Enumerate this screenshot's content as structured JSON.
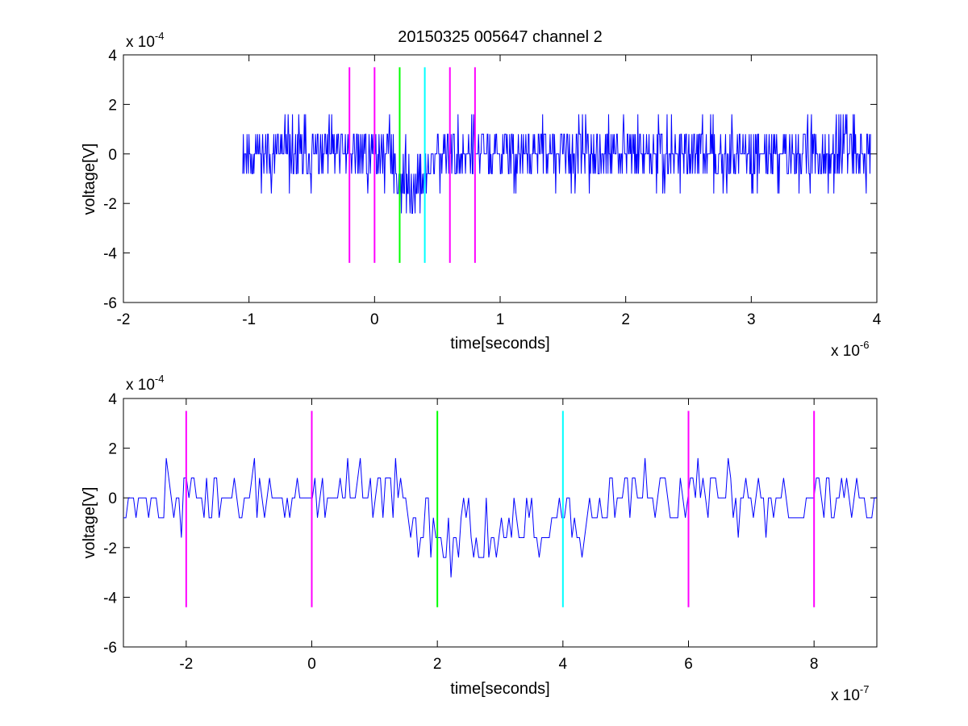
{
  "chart_data": [
    {
      "type": "line",
      "title": "20150325 005647 channel 2",
      "xlabel": "time[seconds]",
      "ylabel": "voltage[V]",
      "x_multiplier_base": "x 10",
      "x_multiplier_exp": "-6",
      "y_multiplier_base": "x 10",
      "y_multiplier_exp": "-4",
      "xlim": [
        -2,
        4
      ],
      "ylim": [
        -6,
        4
      ],
      "xticks": [
        -2,
        -1,
        0,
        1,
        2,
        3,
        4
      ],
      "xtick_labels": [
        "-2",
        "-1",
        "0",
        "1",
        "2",
        "3",
        "4"
      ],
      "yticks": [
        -6,
        -4,
        -2,
        0,
        2,
        4
      ],
      "ytick_labels": [
        "-6",
        "-4",
        "-2",
        "0",
        "2",
        "4"
      ],
      "series": [
        {
          "color": "#0000ff",
          "x_range": [
            -1.05,
            3.95
          ],
          "x_units_note": "",
          "levels": [
            -3.2,
            -2.4,
            -1.6,
            -0.8,
            0,
            0.8,
            1.6,
            2.4,
            3.2
          ],
          "trough": {
            "x_range": [
              0.15,
              0.45
            ],
            "center": -1.2
          }
        }
      ],
      "markers": [
        {
          "x": -0.2,
          "color": "#ff00ff"
        },
        {
          "x": 0.0,
          "color": "#ff00ff"
        },
        {
          "x": 0.2,
          "color": "#00ff00"
        },
        {
          "x": 0.4,
          "color": "#00ffff"
        },
        {
          "x": 0.6,
          "color": "#ff00ff"
        },
        {
          "x": 0.8,
          "color": "#ff00ff"
        }
      ],
      "marker_y_range": [
        -4.4,
        3.5
      ]
    },
    {
      "type": "line",
      "title": "",
      "xlabel": "time[seconds]",
      "ylabel": "voltage[V]",
      "x_multiplier_base": "x 10",
      "x_multiplier_exp": "-7",
      "y_multiplier_base": "x 10",
      "y_multiplier_exp": "-4",
      "xlim": [
        -3,
        9
      ],
      "ylim": [
        -6,
        4
      ],
      "xticks": [
        -2,
        0,
        2,
        4,
        6,
        8
      ],
      "xtick_labels": [
        "-2",
        "0",
        "2",
        "4",
        "6",
        "8"
      ],
      "yticks": [
        -6,
        -4,
        -2,
        0,
        2,
        4
      ],
      "ytick_labels": [
        "-6",
        "-4",
        "-2",
        "0",
        "2",
        "4"
      ],
      "series": [
        {
          "color": "#0000ff",
          "x_range": [
            -3,
            9
          ],
          "levels": [
            -4.0,
            -3.2,
            -2.4,
            -1.6,
            -0.8,
            0,
            0.8,
            1.6,
            2.4,
            3.2
          ],
          "trough": {
            "x_range": [
              1.5,
              4.6
            ],
            "center": -1.5
          }
        }
      ],
      "markers": [
        {
          "x": -2,
          "color": "#ff00ff"
        },
        {
          "x": 0,
          "color": "#ff00ff"
        },
        {
          "x": 2,
          "color": "#00ff00"
        },
        {
          "x": 4,
          "color": "#00ffff"
        },
        {
          "x": 6,
          "color": "#ff00ff"
        },
        {
          "x": 8,
          "color": "#ff00ff"
        }
      ],
      "marker_y_range": [
        -4.4,
        3.5
      ]
    }
  ]
}
